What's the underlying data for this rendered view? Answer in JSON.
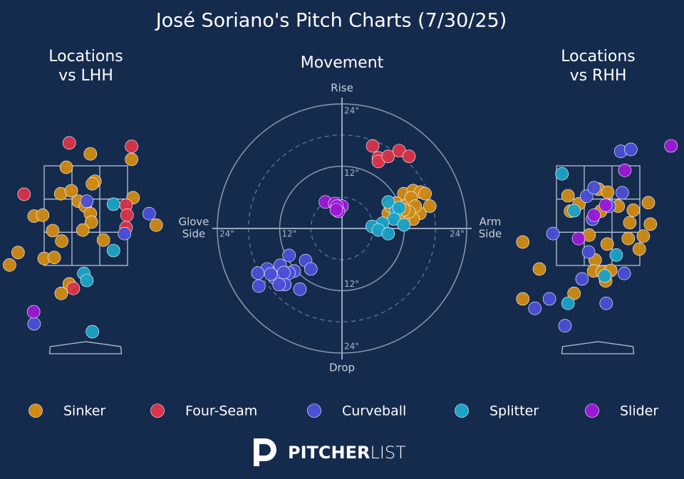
{
  "title": "José Soriano's Pitch Charts (7/30/25)",
  "branding": {
    "bold": "PITCHER",
    "light": "LIST"
  },
  "chart_data": [
    {
      "type": "scatter",
      "title": [
        "Locations",
        "vs LHH"
      ],
      "xlim": [
        -1.6,
        1.6
      ],
      "ylim": [
        0,
        4.5
      ],
      "series": [
        {
          "name": "Sinker",
          "color": "#d08a14",
          "x": [
            0.09,
            -0.39,
            0.18,
            0.13,
            -0.5,
            -0.29,
            -0.15,
            -0.01,
            0.09,
            0.11,
            -0.06,
            -0.66,
            -0.48,
            0.35,
            0.94,
            0.91,
            -1.03,
            -0.86,
            -1.35,
            -1.52,
            -0.83,
            -0.63,
            -0.33,
            -0.49,
            1.4
          ],
          "y": [
            3.74,
            3.47,
            3.19,
            3.14,
            2.94,
            3.0,
            2.79,
            2.69,
            2.54,
            2.37,
            2.21,
            2.2,
            1.99,
            2.01,
            2.86,
            3.63,
            2.49,
            2.51,
            1.76,
            1.51,
            1.64,
            1.66,
            1.13,
            0.94,
            2.31
          ]
        },
        {
          "name": "Four-Seam",
          "color": "#d9344a",
          "x": [
            -0.33,
            0.91,
            -1.23,
            0.8,
            0.82,
            0.8,
            -0.25
          ],
          "y": [
            3.96,
            3.89,
            2.93,
            2.71,
            2.51,
            2.26,
            1.04
          ]
        },
        {
          "name": "Curveball",
          "color": "#4b4fd6",
          "x": [
            0.02,
            1.26,
            0.77,
            -1.03
          ],
          "y": [
            2.79,
            2.54,
            2.14,
            0.33
          ]
        },
        {
          "name": "Splitter",
          "color": "#1aa3c6",
          "x": [
            0.55,
            0.55,
            -0.04,
            0.02,
            0.13
          ],
          "y": [
            2.73,
            1.8,
            1.34,
            1.2,
            0.17
          ]
        },
        {
          "name": "Slider",
          "color": "#9b18d6",
          "x": [
            -1.04
          ],
          "y": [
            0.57
          ]
        }
      ]
    },
    {
      "type": "polar",
      "title": "Movement",
      "rlim": [
        0,
        24
      ],
      "rticks": [
        {
          "value": 12,
          "label": "12\""
        },
        {
          "value": 24,
          "label": "24\""
        }
      ],
      "minor_rticks": [
        6,
        18
      ],
      "axis_labels": {
        "top": "Rise",
        "bottom": "Drop",
        "left": [
          "Glove",
          "Side"
        ],
        "right": [
          "Arm",
          "Side"
        ]
      },
      "series": [
        {
          "name": "Sinker",
          "color": "#d08a14",
          "x": [
            11.9,
            13.7,
            15.1,
            16.0,
            16.9,
            15.0,
            13.7,
            11.8,
            8.9,
            9.3,
            10.4,
            12.1,
            13.3,
            14.1,
            12.9,
            11.0,
            11.9
          ],
          "y": [
            6.7,
            7.3,
            7.0,
            6.7,
            4.3,
            2.9,
            1.8,
            1.8,
            2.9,
            4.3,
            4.9,
            4.3,
            5.9,
            4.3,
            3.2,
            2.9,
            3.6
          ]
        },
        {
          "name": "Four-Seam",
          "color": "#d9344a",
          "x": [
            5.9,
            7.0,
            7.0,
            8.9,
            11.0,
            12.9
          ],
          "y": [
            15.9,
            13.6,
            12.9,
            13.9,
            15.0,
            13.9
          ]
        },
        {
          "name": "Curveball",
          "color": "#4b4fd6",
          "x": [
            -10.2,
            -7.0,
            -6.0,
            -8.1,
            -11.9,
            -14.4,
            -16.2,
            -16.0,
            -13.0,
            -11.0,
            -9.2,
            -10.2,
            -12.1,
            -13.7,
            -11.2
          ],
          "y": [
            -5.2,
            -6.2,
            -7.8,
            -11.7,
            -7.1,
            -7.8,
            -8.6,
            -11.1,
            -9.5,
            -10.8,
            -8.2,
            -8.6,
            -10.8,
            -8.8,
            -8.5
          ]
        },
        {
          "name": "Splitter",
          "color": "#1aa3c6",
          "x": [
            8.9,
            10.4,
            10.0,
            7.8,
            5.8,
            7.0,
            8.9,
            11.9,
            11.0
          ],
          "y": [
            5.1,
            3.3,
            1.8,
            1.0,
            0.4,
            -0.3,
            -1.0,
            0.7,
            4.0
          ]
        },
        {
          "name": "Slider",
          "color": "#9b18d6",
          "x": [
            -3.2,
            -1.4,
            0,
            -0.7,
            -1.0,
            -1.1
          ],
          "y": [
            5.1,
            4.8,
            4.3,
            3.3,
            4.3,
            3.6
          ]
        }
      ]
    },
    {
      "type": "scatter",
      "title": [
        "Locations",
        "vs RHH"
      ],
      "xlim": [
        -1.6,
        1.6
      ],
      "ylim": [
        0,
        4.5
      ],
      "series": [
        {
          "name": "Sinker",
          "color": "#d08a14",
          "x": [
            -0.6,
            -0.38,
            0.01,
            0.19,
            0.05,
            0.4,
            0.7,
            1.0,
            0.63,
            1.04,
            -0.18,
            0.18,
            0.6,
            0.9,
            0.82,
            -0.06,
            -0.09,
            0.08,
            0.25,
            0.15,
            -1.5,
            -1.17,
            -0.48,
            -1.5,
            -0.55
          ],
          "y": [
            2.9,
            2.74,
            3.03,
            2.97,
            2.59,
            2.69,
            2.61,
            2.76,
            2.36,
            2.33,
            2.11,
            1.93,
            2.04,
            2.09,
            1.83,
            1.61,
            1.39,
            1.37,
            1.4,
            1.19,
            1.97,
            1.43,
            0.94,
            0.83,
            2.59
          ]
        },
        {
          "name": "Four-Seam",
          "color": "#d9344a",
          "x": [],
          "y": []
        },
        {
          "name": "Curveball",
          "color": "#4b4fd6",
          "x": [
            0.45,
            0.65,
            -0.23,
            -0.08,
            0.48,
            0.22,
            -0.11,
            -0.9,
            -0.19,
            -0.32,
            0.52,
            0.16,
            -0.97,
            -1.26,
            -0.66
          ],
          "y": [
            3.79,
            3.83,
            2.89,
            3.06,
            2.96,
            2.69,
            2.43,
            2.14,
            1.77,
            1.23,
            1.34,
            0.74,
            0.83,
            0.64,
            0.29
          ]
        },
        {
          "name": "Splitter",
          "color": "#1aa3c6",
          "x": [
            -0.72,
            -0.48,
            0.36,
            0.13,
            -0.6
          ],
          "y": [
            3.34,
            2.6,
            1.71,
            1.29,
            0.74
          ]
        },
        {
          "name": "Slider",
          "color": "#9b18d6",
          "x": [
            1.45,
            0.53,
            0.15,
            -0.08,
            -0.39
          ],
          "y": [
            3.9,
            3.41,
            2.71,
            2.51,
            2.04
          ]
        }
      ]
    }
  ]
}
